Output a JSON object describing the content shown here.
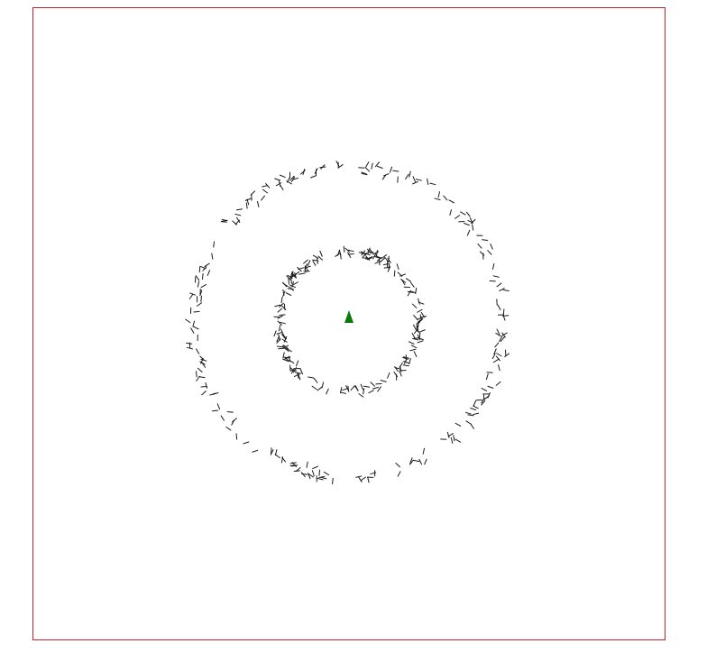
{
  "colors": {
    "background": "#ffffff",
    "frame": "#c0262d",
    "segments": "#1a1a1a",
    "center_marker": "#0a7a0a"
  },
  "center_marker": {
    "shape": "triangle"
  },
  "rings": [
    {
      "name": "inner-ring",
      "radius": 78,
      "segment_count": 210
    },
    {
      "name": "outer-ring",
      "radius": 172,
      "segment_count": 230
    }
  ]
}
